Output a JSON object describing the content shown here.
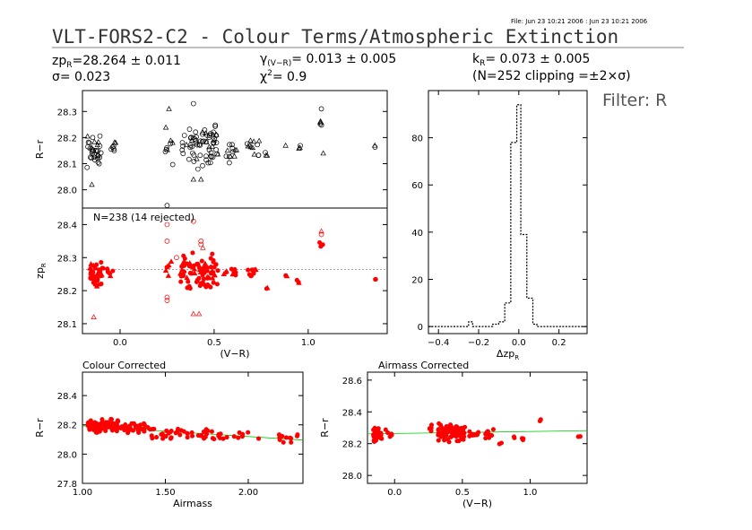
{
  "file_stamp": "File: Jun 23 10:21 2006 : Jun 23 10:21 2006",
  "title": "VLT-FORS2-C2 - Colour Terms/Atmospheric Extinction",
  "filter_label": "Filter: R",
  "fit": {
    "zp_text": "zp",
    "zp_sub": "R",
    "zp_value": "=28.264 ± 0.011",
    "sigma_text": "σ= 0.023",
    "gamma_text": "γ",
    "gamma_sub": "(V−R)",
    "gamma_value": "= 0.013 ± 0.005",
    "chi_text": "χ",
    "chi_sup": "2",
    "chi_value": "= 0.9",
    "k_text": "k",
    "k_sub": "R",
    "k_value": "= 0.073 ± 0.005",
    "n_text": "(N=252 clipping =±2×σ)"
  },
  "colors": {
    "accepted": "#ff0000",
    "raw": "#000000",
    "fit_line": "#00cc00",
    "zero_line": "#888888"
  },
  "chart_data": [
    {
      "id": "raw",
      "type": "scatter",
      "ylabel": "R−r",
      "xlim": [
        -0.2,
        1.42
      ],
      "ylim": [
        27.93,
        28.38
      ],
      "yticks": [
        28.0,
        28.1,
        28.2,
        28.3
      ],
      "ytick_labels": [
        "28.0",
        "28.1",
        "28.2",
        "28.3"
      ],
      "clusters": [
        {
          "x": [
            -0.18,
            -0.1
          ],
          "y": [
            28.08,
            28.24
          ],
          "n": 32
        },
        {
          "x": [
            -0.06,
            -0.02
          ],
          "y": [
            28.14,
            28.2
          ],
          "n": 7
        },
        {
          "x": [
            0.24,
            0.28
          ],
          "y": [
            28.09,
            28.29
          ],
          "n": 9
        },
        {
          "x": [
            0.33,
            0.52
          ],
          "y": [
            28.07,
            28.26
          ],
          "n": 68
        },
        {
          "x": [
            0.55,
            0.62
          ],
          "y": [
            28.1,
            28.2
          ],
          "n": 12
        },
        {
          "x": [
            0.66,
            0.74
          ],
          "y": [
            28.11,
            28.21
          ],
          "n": 12
        },
        {
          "x": [
            0.77,
            0.79
          ],
          "y": [
            28.12,
            28.15
          ],
          "n": 3
        },
        {
          "x": [
            0.94,
            0.96
          ],
          "y": [
            28.15,
            28.17
          ],
          "n": 3
        },
        {
          "x": [
            1.06,
            1.08
          ],
          "y": [
            28.23,
            28.28
          ],
          "n": 4
        },
        {
          "x": [
            1.35,
            1.37
          ],
          "y": [
            28.14,
            28.18
          ],
          "n": 2
        }
      ],
      "extra_points": [
        {
          "x": -0.15,
          "y": 28.02,
          "m": "tri"
        },
        {
          "x": 0.25,
          "y": 27.94,
          "m": "circ"
        },
        {
          "x": 0.39,
          "y": 28.33,
          "m": "circ"
        },
        {
          "x": 0.26,
          "y": 28.31,
          "m": "tri"
        },
        {
          "x": 0.39,
          "y": 28.04,
          "m": "tri"
        },
        {
          "x": 0.43,
          "y": 28.04,
          "m": "tri"
        },
        {
          "x": 0.88,
          "y": 28.17,
          "m": "tri"
        },
        {
          "x": 1.07,
          "y": 28.31,
          "m": "circ"
        },
        {
          "x": 1.08,
          "y": 28.14,
          "m": "tri"
        }
      ]
    },
    {
      "id": "zp",
      "type": "scatter",
      "annotation": "N=238 (14 rejected)",
      "ylabel": "zp",
      "ylabel_sub": "R",
      "xlabel": "(V−R)",
      "xlim": [
        -0.2,
        1.42
      ],
      "ylim": [
        28.07,
        28.45
      ],
      "xticks": [
        0.0,
        0.5,
        1.0
      ],
      "xtick_labels": [
        "0.0",
        "0.5",
        "1.0"
      ],
      "yticks": [
        28.1,
        28.2,
        28.3,
        28.4
      ],
      "ytick_labels": [
        "28.1",
        "28.2",
        "28.3",
        "28.4"
      ],
      "zp_line": 28.264,
      "clusters": [
        {
          "x": [
            -0.16,
            -0.09
          ],
          "y": [
            28.2,
            28.3
          ],
          "n": 38
        },
        {
          "x": [
            -0.07,
            -0.02
          ],
          "y": [
            28.23,
            28.27
          ],
          "n": 6
        },
        {
          "x": [
            0.24,
            0.28
          ],
          "y": [
            28.24,
            28.29
          ],
          "n": 6
        },
        {
          "x": [
            0.32,
            0.52
          ],
          "y": [
            28.2,
            28.32
          ],
          "n": 80
        },
        {
          "x": [
            0.55,
            0.62
          ],
          "y": [
            28.24,
            28.27
          ],
          "n": 10
        },
        {
          "x": [
            0.66,
            0.73
          ],
          "y": [
            28.23,
            28.28
          ],
          "n": 10
        },
        {
          "x": [
            0.77,
            0.79
          ],
          "y": [
            28.2,
            28.21
          ],
          "n": 2
        },
        {
          "x": [
            0.88,
            0.89
          ],
          "y": [
            28.24,
            28.25
          ],
          "n": 2
        },
        {
          "x": [
            0.94,
            0.96
          ],
          "y": [
            28.22,
            28.24
          ],
          "n": 3
        },
        {
          "x": [
            1.06,
            1.08
          ],
          "y": [
            28.32,
            28.35
          ],
          "n": 3
        },
        {
          "x": [
            1.35,
            1.37
          ],
          "y": [
            28.23,
            28.24
          ],
          "n": 2
        }
      ],
      "rejected_points": [
        {
          "x": -0.14,
          "y": 28.12,
          "m": "tri"
        },
        {
          "x": 0.25,
          "y": 28.4,
          "m": "circ"
        },
        {
          "x": 0.25,
          "y": 28.35,
          "m": "circ"
        },
        {
          "x": 0.25,
          "y": 28.18,
          "m": "circ"
        },
        {
          "x": 0.25,
          "y": 28.17,
          "m": "circ"
        },
        {
          "x": 0.39,
          "y": 28.41,
          "m": "circ"
        },
        {
          "x": 0.39,
          "y": 28.13,
          "m": "tri"
        },
        {
          "x": 0.42,
          "y": 28.13,
          "m": "tri"
        },
        {
          "x": 0.43,
          "y": 28.35,
          "m": "circ"
        },
        {
          "x": 0.43,
          "y": 28.34,
          "m": "circ"
        },
        {
          "x": 0.44,
          "y": 28.33,
          "m": "tri"
        },
        {
          "x": 1.07,
          "y": 28.38,
          "m": "tri"
        },
        {
          "x": 1.07,
          "y": 28.37,
          "m": "circ"
        },
        {
          "x": 0.3,
          "y": 28.3,
          "m": "circ"
        }
      ]
    },
    {
      "id": "hist",
      "type": "bar",
      "xlabel": "Δzp",
      "xlabel_sub": "R",
      "xlim": [
        -0.45,
        0.34
      ],
      "ylim": [
        -3,
        100
      ],
      "xticks": [
        -0.4,
        -0.2,
        0.0,
        0.2
      ],
      "xtick_labels": [
        "−0.4",
        "−0.2",
        "0.0",
        "0.2"
      ],
      "yticks": [
        0,
        20,
        40,
        60,
        80
      ],
      "ytick_labels": [
        "0",
        "20",
        "40",
        "60",
        "80"
      ],
      "bin_edges": [
        -0.45,
        -0.25,
        -0.23,
        -0.13,
        -0.1,
        -0.07,
        -0.04,
        -0.01,
        0.01,
        0.04,
        0.07,
        0.09,
        0.34
      ],
      "counts": [
        0,
        2,
        0,
        1,
        2,
        10,
        78,
        94,
        39,
        12,
        1,
        0
      ]
    },
    {
      "id": "colour_corrected",
      "type": "scatter",
      "title": "Colour Corrected",
      "ylabel": "R−r",
      "xlabel": "Airmass",
      "xlim": [
        1.0,
        2.33
      ],
      "ylim": [
        27.8,
        28.56
      ],
      "xticks": [
        1.0,
        1.5,
        2.0
      ],
      "xtick_labels": [
        "1.00",
        "1.50",
        "2.00"
      ],
      "yticks": [
        27.8,
        28.0,
        28.2,
        28.4
      ],
      "ytick_labels": [
        "27.8",
        "28.0",
        "28.2",
        "28.4"
      ],
      "fit_line": {
        "x": [
          1.0,
          2.33
        ],
        "y": [
          28.193,
          28.096
        ]
      },
      "clusters": [
        {
          "x": [
            1.03,
            1.22
          ],
          "y": [
            28.14,
            28.25
          ],
          "n": 80
        },
        {
          "x": [
            1.22,
            1.4
          ],
          "y": [
            28.13,
            28.22
          ],
          "n": 35
        },
        {
          "x": [
            1.4,
            1.6
          ],
          "y": [
            28.1,
            28.2
          ],
          "n": 22
        },
        {
          "x": [
            1.6,
            1.8
          ],
          "y": [
            28.1,
            28.18
          ],
          "n": 18
        },
        {
          "x": [
            1.8,
            2.0
          ],
          "y": [
            28.08,
            28.16
          ],
          "n": 12
        },
        {
          "x": [
            2.0,
            2.3
          ],
          "y": [
            28.07,
            28.14
          ],
          "n": 12
        }
      ]
    },
    {
      "id": "airmass_corrected",
      "type": "scatter",
      "title": "Airmass Corrected",
      "ylabel": "R−r",
      "xlabel": "(V−R)",
      "xlim": [
        -0.2,
        1.42
      ],
      "ylim": [
        27.95,
        28.65
      ],
      "xticks": [
        0.0,
        0.5,
        1.0
      ],
      "xtick_labels": [
        "0.0",
        "0.5",
        "1.0"
      ],
      "yticks": [
        28.0,
        28.2,
        28.4,
        28.6
      ],
      "ytick_labels": [
        "28.0",
        "28.2",
        "28.4",
        "28.6"
      ],
      "fit_line": {
        "x": [
          -0.2,
          1.42
        ],
        "y": [
          28.261,
          28.282
        ]
      },
      "clusters": [
        {
          "x": [
            -0.16,
            -0.09
          ],
          "y": [
            28.2,
            28.32
          ],
          "n": 38
        },
        {
          "x": [
            -0.07,
            -0.02
          ],
          "y": [
            28.24,
            28.29
          ],
          "n": 6
        },
        {
          "x": [
            0.24,
            0.28
          ],
          "y": [
            28.27,
            28.32
          ],
          "n": 5
        },
        {
          "x": [
            0.32,
            0.52
          ],
          "y": [
            28.2,
            28.34
          ],
          "n": 80
        },
        {
          "x": [
            0.55,
            0.62
          ],
          "y": [
            28.24,
            28.29
          ],
          "n": 10
        },
        {
          "x": [
            0.66,
            0.73
          ],
          "y": [
            28.22,
            28.3
          ],
          "n": 10
        },
        {
          "x": [
            0.77,
            0.79
          ],
          "y": [
            28.19,
            28.21
          ],
          "n": 2
        },
        {
          "x": [
            0.88,
            0.89
          ],
          "y": [
            28.23,
            28.25
          ],
          "n": 2
        },
        {
          "x": [
            0.94,
            0.96
          ],
          "y": [
            28.22,
            28.24
          ],
          "n": 3
        },
        {
          "x": [
            1.06,
            1.08
          ],
          "y": [
            28.32,
            28.36
          ],
          "n": 2
        },
        {
          "x": [
            1.35,
            1.37
          ],
          "y": [
            28.24,
            28.26
          ],
          "n": 2
        }
      ]
    }
  ]
}
